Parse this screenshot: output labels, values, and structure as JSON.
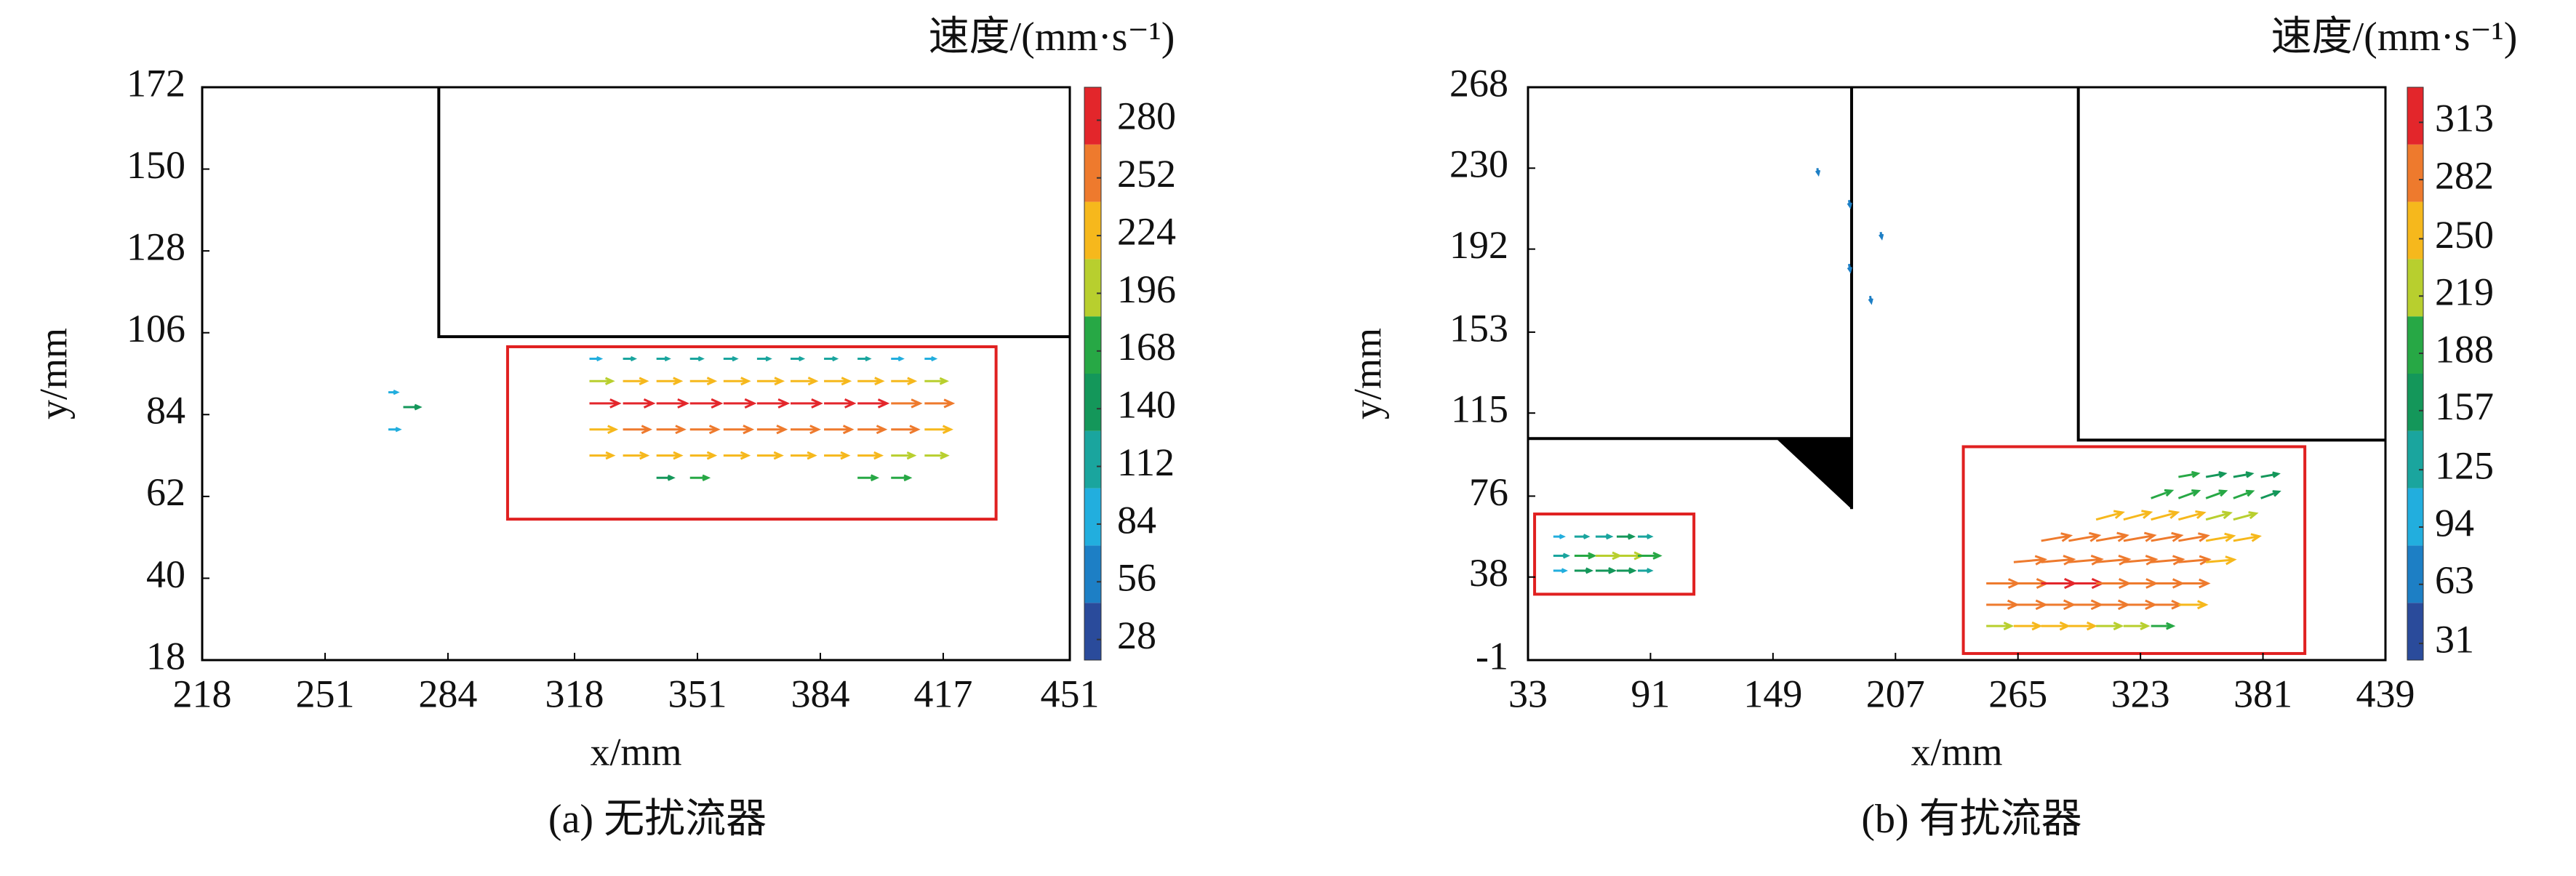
{
  "chart_data": [
    {
      "type": "quiver",
      "title": "速度/(mm·s⁻¹)",
      "xlabel": "x/mm",
      "ylabel": "y/mm",
      "caption": "(a) 无扰流器",
      "xlim": [
        218,
        451
      ],
      "ylim": [
        18,
        172
      ],
      "xticks": [
        218,
        251,
        284,
        318,
        351,
        384,
        417,
        451
      ],
      "yticks": [
        18,
        40,
        62,
        84,
        106,
        128,
        150,
        172
      ],
      "colorbar": {
        "lim": [
          18,
          296
        ],
        "ticks": [
          28,
          56,
          84,
          112,
          140,
          168,
          196,
          224,
          252,
          280
        ],
        "colors": [
          "#2a4b9b",
          "#1d7fc5",
          "#22aede",
          "#1aa59e",
          "#14975a",
          "#27a845",
          "#b8cf2e",
          "#f6b81c",
          "#ee7a2d",
          "#e3262b"
        ]
      },
      "quiver": {
        "x": [
          322,
          331,
          340,
          349,
          358,
          367,
          376,
          385,
          394,
          403,
          412,
          322,
          331,
          340,
          349,
          358,
          367,
          376,
          385,
          394,
          403,
          412,
          322,
          331,
          340,
          349,
          358,
          367,
          376,
          385,
          394,
          403,
          412,
          322,
          331,
          340,
          349,
          358,
          367,
          376,
          385,
          394,
          403,
          412,
          322,
          331,
          340,
          349,
          358,
          367,
          376,
          385,
          394,
          403,
          412,
          340,
          349,
          394,
          403,
          272,
          268,
          268
        ],
        "y": [
          99,
          99,
          99,
          99,
          99,
          99,
          99,
          99,
          99,
          99,
          99,
          93,
          93,
          93,
          93,
          93,
          93,
          93,
          93,
          93,
          93,
          93,
          87,
          87,
          87,
          87,
          87,
          87,
          87,
          87,
          87,
          87,
          87,
          80,
          80,
          80,
          80,
          80,
          80,
          80,
          80,
          80,
          80,
          80,
          73,
          73,
          73,
          73,
          73,
          73,
          73,
          73,
          73,
          73,
          73,
          67,
          67,
          67,
          67,
          86,
          80,
          90
        ],
        "speed": [
          100,
          105,
          110,
          110,
          115,
          115,
          110,
          110,
          105,
          100,
          95,
          210,
          215,
          220,
          225,
          228,
          230,
          232,
          230,
          225,
          215,
          200,
          270,
          275,
          278,
          280,
          280,
          278,
          275,
          272,
          270,
          265,
          255,
          240,
          245,
          250,
          255,
          258,
          258,
          255,
          252,
          250,
          245,
          240,
          215,
          220,
          222,
          225,
          225,
          222,
          220,
          218,
          215,
          210,
          205,
          150,
          165,
          175,
          170,
          150,
          100,
          80
        ]
      }
    },
    {
      "type": "quiver",
      "title": "速度/(mm·s⁻¹)",
      "xlabel": "x/mm",
      "ylabel": "y/mm",
      "caption": "(b) 有扰流器",
      "xlim": [
        33,
        439
      ],
      "ylim": [
        -1,
        268
      ],
      "xticks": [
        33,
        91,
        149,
        207,
        265,
        323,
        381,
        439
      ],
      "yticks": [
        -1,
        38,
        76,
        115,
        153,
        192,
        230,
        268
      ],
      "colorbar": {
        "lim": [
          22,
          332
        ],
        "ticks": [
          31,
          63,
          94,
          125,
          157,
          188,
          219,
          250,
          282,
          313
        ],
        "colors": [
          "#2a4b9b",
          "#1d7fc5",
          "#22aede",
          "#1aa59e",
          "#14975a",
          "#27a845",
          "#b8cf2e",
          "#f6b81c",
          "#ee7a2d",
          "#e3262b"
        ]
      },
      "quiver": {
        "x": [
          45,
          55,
          65,
          75,
          85,
          45,
          55,
          65,
          75,
          85,
          45,
          55,
          65,
          75,
          85,
          170,
          185,
          200,
          185,
          195,
          250,
          263,
          276,
          289,
          302,
          315,
          328,
          250,
          263,
          276,
          289,
          302,
          315,
          328,
          341,
          250,
          263,
          276,
          289,
          302,
          315,
          328,
          341,
          263,
          276,
          289,
          302,
          315,
          328,
          341,
          354,
          276,
          289,
          302,
          315,
          328,
          341,
          354,
          367,
          302,
          315,
          328,
          341,
          354,
          367,
          328,
          341,
          354,
          367,
          380,
          341,
          354,
          367,
          380
        ],
        "y": [
          57,
          57,
          57,
          57,
          57,
          48,
          48,
          48,
          48,
          48,
          41,
          41,
          41,
          41,
          41,
          230,
          215,
          200,
          185,
          170,
          15,
          15,
          15,
          15,
          15,
          15,
          15,
          25,
          25,
          25,
          25,
          25,
          25,
          25,
          25,
          35,
          35,
          35,
          35,
          35,
          35,
          35,
          35,
          45,
          45,
          45,
          45,
          45,
          45,
          45,
          45,
          55,
          55,
          55,
          55,
          55,
          55,
          55,
          55,
          65,
          65,
          65,
          65,
          65,
          65,
          75,
          75,
          75,
          75,
          75,
          85,
          85,
          85,
          85
        ],
        "speed": [
          90,
          120,
          140,
          150,
          120,
          130,
          180,
          220,
          230,
          200,
          110,
          150,
          170,
          160,
          120,
          55,
          60,
          55,
          65,
          60,
          230,
          240,
          245,
          240,
          230,
          220,
          200,
          280,
          290,
          295,
          295,
          290,
          285,
          270,
          250,
          290,
          300,
          305,
          305,
          300,
          295,
          285,
          270,
          285,
          295,
          300,
          300,
          295,
          290,
          280,
          260,
          270,
          280,
          285,
          285,
          280,
          270,
          255,
          240,
          250,
          255,
          250,
          240,
          230,
          215,
          200,
          195,
          190,
          185,
          175,
          180,
          175,
          170,
          160
        ],
        "angle": [
          0,
          0,
          0,
          0,
          0,
          0,
          0,
          0,
          0,
          0,
          0,
          0,
          0,
          0,
          0,
          -80,
          -80,
          -80,
          -80,
          -80,
          0,
          0,
          0,
          0,
          0,
          0,
          0,
          0,
          0,
          0,
          0,
          0,
          0,
          0,
          0,
          0,
          0,
          0,
          0,
          0,
          0,
          0,
          0,
          5,
          5,
          5,
          5,
          5,
          5,
          5,
          5,
          10,
          10,
          10,
          10,
          10,
          10,
          10,
          10,
          15,
          15,
          15,
          15,
          15,
          15,
          20,
          20,
          20,
          20,
          20,
          10,
          10,
          10,
          10
        ]
      }
    }
  ]
}
